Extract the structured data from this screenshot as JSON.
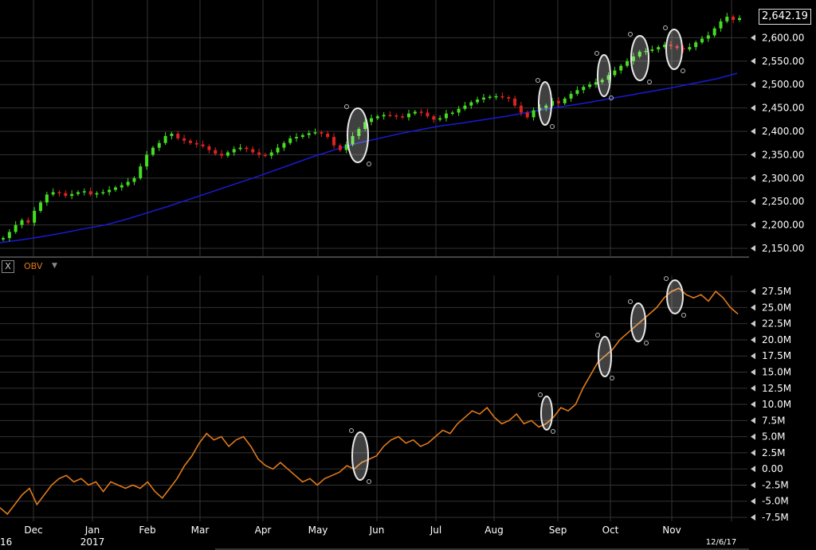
{
  "chart_data": [
    {
      "type": "candlestick",
      "title": "",
      "ylim": [
        2150,
        2650
      ],
      "y_ticks": [
        "2,150.00",
        "2,200.00",
        "2,250.00",
        "2,300.00",
        "2,350.00",
        "2,400.00",
        "2,450.00",
        "2,500.00",
        "2,550.00",
        "2,600.00"
      ],
      "last_price": "2,642.19",
      "price_series": [
        2172,
        2185,
        2200,
        2210,
        2205,
        2230,
        2248,
        2265,
        2270,
        2268,
        2262,
        2266,
        2270,
        2272,
        2265,
        2268,
        2270,
        2275,
        2280,
        2285,
        2292,
        2300,
        2325,
        2350,
        2365,
        2375,
        2390,
        2395,
        2385,
        2380,
        2375,
        2372,
        2368,
        2360,
        2352,
        2348,
        2355,
        2362,
        2365,
        2362,
        2355,
        2350,
        2348,
        2355,
        2365,
        2375,
        2385,
        2388,
        2392,
        2396,
        2398,
        2395,
        2388,
        2370,
        2360,
        2372,
        2390,
        2405,
        2420,
        2428,
        2432,
        2435,
        2434,
        2432,
        2430,
        2438,
        2442,
        2440,
        2432,
        2425,
        2428,
        2438,
        2440,
        2448,
        2455,
        2462,
        2468,
        2472,
        2474,
        2475,
        2473,
        2470,
        2455,
        2440,
        2430,
        2445,
        2450,
        2455,
        2465,
        2460,
        2470,
        2480,
        2488,
        2495,
        2500,
        2505,
        2510,
        2520,
        2530,
        2540,
        2550,
        2560,
        2570,
        2572,
        2575,
        2580,
        2585,
        2582,
        2578,
        2575,
        2580,
        2590,
        2598,
        2605,
        2620,
        2635,
        2645,
        2638,
        2642
      ],
      "moving_average": [
        2162,
        2168,
        2175,
        2183,
        2192,
        2200,
        2212,
        2226,
        2240,
        2255,
        2270,
        2285,
        2300,
        2316,
        2332,
        2348,
        2362,
        2375,
        2385,
        2395,
        2404,
        2412,
        2418,
        2425,
        2432,
        2440,
        2448,
        2455,
        2462,
        2470,
        2478,
        2486,
        2494,
        2503,
        2512,
        2524
      ],
      "x_labels": [
        "Dec",
        "Jan",
        "Feb",
        "Mar",
        "Apr",
        "May",
        "Jun",
        "Jul",
        "Aug",
        "Sep",
        "Oct",
        "Nov"
      ],
      "x_sublabels": [
        "16",
        "2017",
        "12/6/17"
      ]
    },
    {
      "type": "line",
      "series": [
        {
          "name": "OBV",
          "values": [
            -6.0,
            -7.0,
            -5.5,
            -4.0,
            -3.0,
            -5.5,
            -4.0,
            -2.5,
            -1.5,
            -1.0,
            -2.0,
            -1.5,
            -2.5,
            -2.0,
            -3.5,
            -2.0,
            -2.5,
            -3.0,
            -2.5,
            -3.0,
            -2.0,
            -3.5,
            -4.5,
            -3.0,
            -1.5,
            0.5,
            2.0,
            4.0,
            5.5,
            4.5,
            5.0,
            3.5,
            4.5,
            5.0,
            3.5,
            1.5,
            0.5,
            0.0,
            1.0,
            0.0,
            -1.0,
            -2.0,
            -1.5,
            -2.5,
            -1.5,
            -1.0,
            -0.5,
            0.5,
            0.0,
            1.0,
            1.5,
            2.0,
            3.5,
            4.5,
            5.0,
            4.0,
            4.5,
            3.5,
            4.0,
            5.0,
            6.0,
            5.5,
            7.0,
            8.0,
            9.0,
            8.5,
            9.5,
            8.0,
            7.0,
            7.5,
            8.5,
            7.0,
            7.5,
            6.5,
            7.0,
            8.0,
            9.5,
            9.0,
            10.0,
            12.5,
            14.5,
            16.5,
            17.5,
            18.5,
            20.0,
            21.0,
            22.0,
            23.0,
            24.0,
            25.0,
            26.5,
            27.5,
            28.0,
            27.0,
            26.5,
            27.0,
            26.0,
            27.5,
            26.5,
            25.0,
            24.0
          ]
        }
      ],
      "ylim": [
        -7.5,
        28.5
      ],
      "y_ticks": [
        "27.5M",
        "25.0M",
        "22.5M",
        "20.0M",
        "17.5M",
        "15.0M",
        "12.5M",
        "10.0M",
        "7.5M",
        "5.0M",
        "2.5M",
        "0.00",
        "-2.5M",
        "-5.0M",
        "-7.5M"
      ]
    }
  ],
  "indicator": {
    "close_label": "X",
    "name": "OBV",
    "caret": "▼"
  },
  "colors": {
    "up": "#44dd22",
    "down": "#dd2222",
    "ma": "#1a1ad6",
    "obv": "#e07a1c",
    "grid": "#333333"
  }
}
